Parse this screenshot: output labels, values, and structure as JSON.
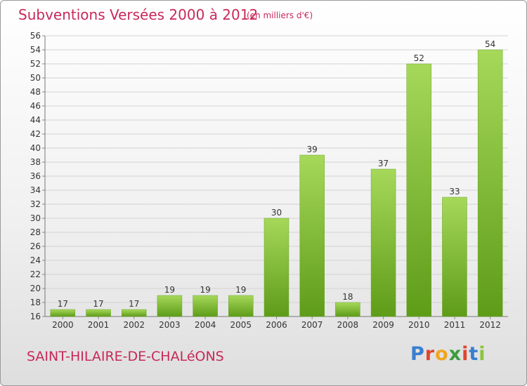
{
  "header": {
    "title": "Subventions Versées 2000 à 2012",
    "subtitle": "(en milliers d'€)"
  },
  "footer": {
    "commune": "SAINT-HILAIRE-DE-CHALéONS",
    "logo": {
      "text": "Proxiti",
      "letter_colors": [
        "#3a7fd0",
        "#e0462d",
        "#f0a61e",
        "#3a9d3a",
        "#e0462d",
        "#3a7fd0",
        "#8bc53f"
      ]
    }
  },
  "colors": {
    "title": "#c8285a",
    "bar_light": "#a6d85a",
    "bar_dark": "#5e9c18",
    "grid": "#d3d3d3",
    "axis_text": "#333333"
  },
  "chart_data": {
    "type": "bar",
    "title": "Subventions Versées 2000 à 2012",
    "subtitle": "(en milliers d'€)",
    "categories": [
      "2000",
      "2001",
      "2002",
      "2003",
      "2004",
      "2005",
      "2006",
      "2007",
      "2008",
      "2009",
      "2010",
      "2011",
      "2012"
    ],
    "values": [
      17,
      17,
      17,
      19,
      19,
      19,
      30,
      39,
      18,
      37,
      52,
      33,
      54
    ],
    "ylim": [
      16,
      56
    ],
    "ytick_step": 2,
    "grid": true,
    "data_labels": true
  }
}
